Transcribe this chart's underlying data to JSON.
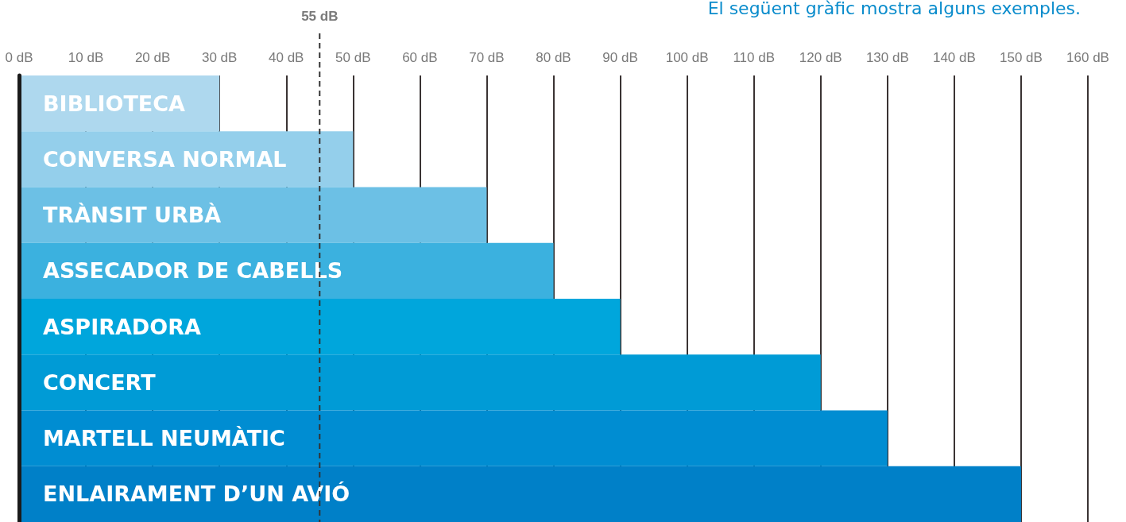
{
  "chart_data": {
    "type": "bar",
    "orientation": "horizontal",
    "annotations": [
      "El següent gràfic mostra alguns exemples."
    ],
    "categories": [
      "BIBLIOTECA",
      "CONVERSA NORMAL",
      "TRÀNSIT URBÀ",
      "ASSECADOR DE CABELLS",
      "ASPIRADORA",
      "CONCERT",
      "MARTELL NEUMÀTIC",
      "ENLAIRAMENT D’UN AVIÓ"
    ],
    "values": [
      30,
      50,
      70,
      80,
      90,
      120,
      130,
      150
    ],
    "colors": [
      "#aed8ee",
      "#94cfeb",
      "#6cc0e5",
      "#3bb1df",
      "#00a6dc",
      "#009bd6",
      "#008dd2",
      "#0080c8"
    ],
    "xlim": [
      0,
      160
    ],
    "xticks": [
      {
        "value": 0,
        "label": "0 dB"
      },
      {
        "value": 10,
        "label": "10 dB"
      },
      {
        "value": 20,
        "label": "20 dB"
      },
      {
        "value": 30,
        "label": "30 dB"
      },
      {
        "value": 40,
        "label": "40 dB"
      },
      {
        "value": 50,
        "label": "50 dB"
      },
      {
        "value": 60,
        "label": "60 dB"
      },
      {
        "value": 70,
        "label": "70 dB"
      },
      {
        "value": 80,
        "label": "80 dB"
      },
      {
        "value": 90,
        "label": "90 dB"
      },
      {
        "value": 100,
        "label": "100 dB"
      },
      {
        "value": 110,
        "label": "110 dB"
      },
      {
        "value": 120,
        "label": "120 dB"
      },
      {
        "value": 130,
        "label": "130 dB"
      },
      {
        "value": 140,
        "label": "140 dB"
      },
      {
        "value": 150,
        "label": "150 dB"
      },
      {
        "value": 160,
        "label": "160 dB"
      }
    ],
    "ref_lines": [
      {
        "axis": "x",
        "value": 45,
        "label": "55 dB",
        "color": "#333333",
        "line_style": "dashed"
      }
    ],
    "grid": "x"
  }
}
